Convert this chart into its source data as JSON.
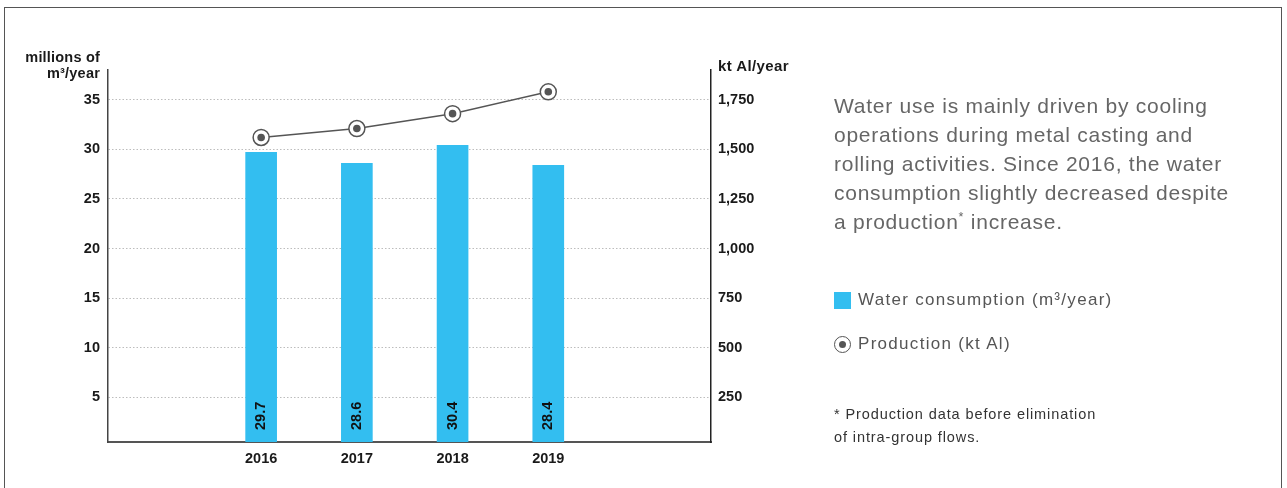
{
  "chart_data": {
    "type": "bar",
    "ylabel": "millions of m³/year",
    "y2label": "kt Al/year",
    "x": [
      2016,
      2017,
      2018,
      2019
    ],
    "xlim": [
      2014.4,
      2020.7
    ],
    "xticks": [
      2016,
      2017,
      2018,
      2019
    ],
    "series": [
      {
        "name": "Water consumption (m³/year)",
        "color": "#33bef0",
        "values": [
          29.7,
          28.6,
          30.4,
          28.4
        ],
        "value_labels": [
          "29.7",
          "28.6",
          "30.4",
          "28.4"
        ]
      },
      {
        "name": "Production (kt Al)",
        "type": "line",
        "axis": "y2",
        "color": "#555555",
        "marker": "circle",
        "values": [
          1560,
          1605,
          1680,
          1790
        ]
      }
    ],
    "ylim": [
      0.5,
      38
    ],
    "yticks": [
      5,
      10,
      15,
      20,
      25,
      30,
      35
    ],
    "y2lim": [
      25,
      1900
    ],
    "y2ticks": [
      250,
      500,
      750,
      {
        "value": 1000,
        "label": "1,000"
      },
      {
        "value": 1250,
        "label": "1,250"
      },
      {
        "value": 1500,
        "label": "1,500"
      },
      {
        "value": 1750,
        "label": "1,750"
      }
    ],
    "grid": "y",
    "legend": "right",
    "annotations": [
      "Water use is mainly driven by cooling operations during metal casting and rolling activities. Since 2016, the water consumption slightly decreased despite a production$^{*}$ increase.",
      "* Production data before elimination of intra-group flows."
    ]
  }
}
